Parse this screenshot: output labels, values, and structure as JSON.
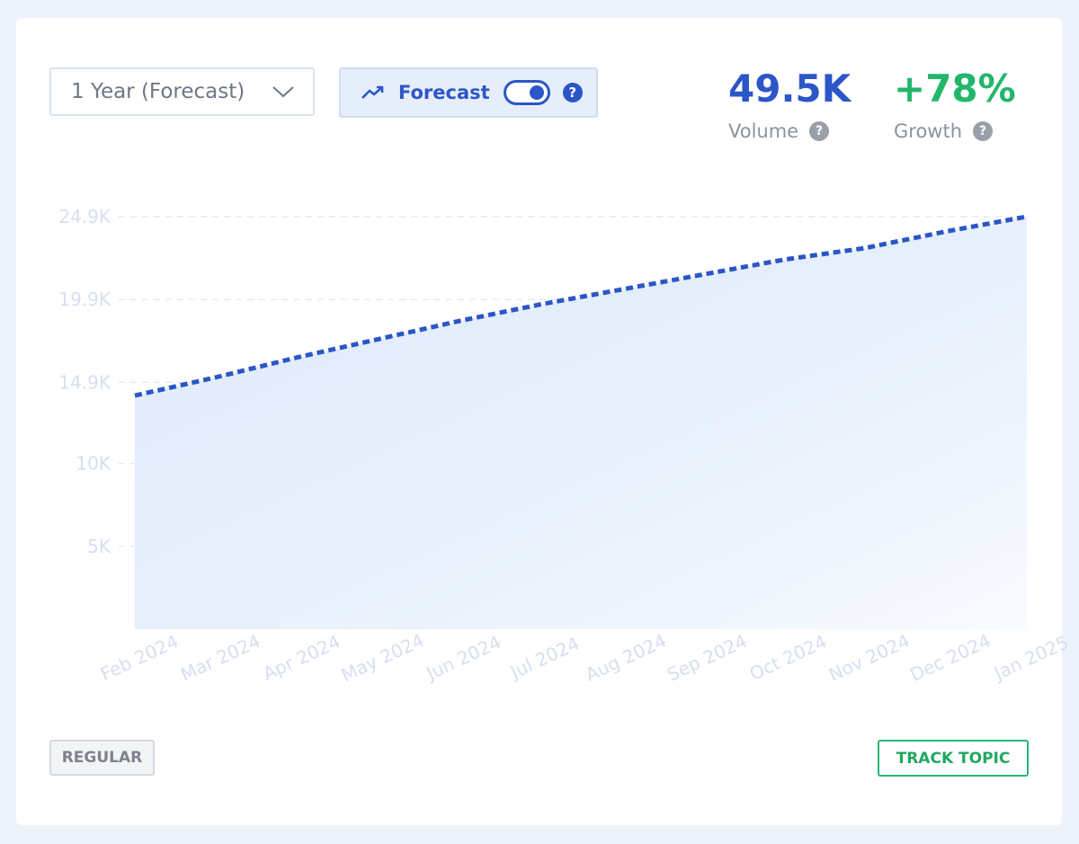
{
  "period_select": {
    "value": "1 Year (Forecast)",
    "icon": "chevron-down-icon"
  },
  "forecast": {
    "label": "Forecast",
    "enabled": true,
    "icon": "trending-up-icon",
    "help": "?"
  },
  "stats": {
    "volume": {
      "value": "49.5K",
      "label": "Volume",
      "color": "#2b56c7",
      "help": "?"
    },
    "growth": {
      "value": "+78%",
      "label": "Growth",
      "color": "#22b66a",
      "help": "?"
    }
  },
  "buttons": {
    "regular": "REGULAR",
    "track": "TRACK TOPIC"
  },
  "colors": {
    "line": "#2b56c7",
    "area": "#dde9fa",
    "grid": "#dfe5ee",
    "tick_text": "#d6dff0"
  },
  "chart_data": {
    "type": "area",
    "title": "",
    "xlabel": "",
    "ylabel": "",
    "x": [
      "Feb 2024",
      "Mar 2024",
      "Apr 2024",
      "May 2024",
      "Jun 2024",
      "Jul 2024",
      "Aug 2024",
      "Sep 2024",
      "Oct 2024",
      "Nov 2024",
      "Dec 2024",
      "Jan 2025"
    ],
    "series": [
      {
        "name": "",
        "values": [
          14100,
          15200,
          16400,
          17500,
          18600,
          19600,
          20500,
          21400,
          22300,
          23000,
          24000,
          24900
        ],
        "style": "dashed"
      }
    ],
    "yticks": [
      5000,
      10000,
      14900,
      19900,
      24900
    ],
    "ytick_labels": [
      "5K",
      "10K",
      "14.9K",
      "19.9K",
      "24.9K"
    ],
    "ylim": [
      0,
      24900
    ],
    "grid": "horizontal dashed"
  }
}
